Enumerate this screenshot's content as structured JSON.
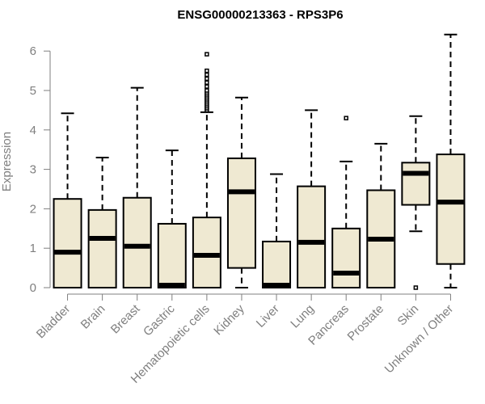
{
  "chart_data": {
    "type": "boxplot",
    "title": "ENSG00000213363 - RPS3P6",
    "ylabel": "Expression",
    "xlabel": "",
    "ylim": [
      0,
      6.5
    ],
    "yticks": [
      0,
      1,
      2,
      3,
      4,
      5,
      6
    ],
    "grid": false,
    "colors": {
      "box_fill": "#efe9d2",
      "box_stroke": "#000000",
      "axis": "#7f7f7f"
    },
    "categories": [
      "Bladder",
      "Brain",
      "Breast",
      "Gastric",
      "Hematopoietic cells",
      "Kidney",
      "Liver",
      "Lung",
      "Pancreas",
      "Prostate",
      "Skin",
      "Unknown / Other"
    ],
    "boxes": [
      {
        "min": 0,
        "q1": 0,
        "median": 0.9,
        "q3": 2.25,
        "max": 4.42,
        "outliers": []
      },
      {
        "min": 0,
        "q1": 0,
        "median": 1.25,
        "q3": 1.97,
        "max": 3.3,
        "outliers": []
      },
      {
        "min": 0,
        "q1": 0,
        "median": 1.05,
        "q3": 2.28,
        "max": 5.07,
        "outliers": []
      },
      {
        "min": 0,
        "q1": 0,
        "median": 0.02,
        "q3": 1.62,
        "max": 3.48,
        "outliers": []
      },
      {
        "min": 0,
        "q1": 0,
        "median": 0.82,
        "q3": 1.78,
        "max": 4.45,
        "outliers": [
          4.5,
          4.55,
          4.6,
          4.65,
          4.7,
          4.75,
          4.8,
          4.85,
          4.9,
          4.95,
          5.0,
          5.1,
          5.2,
          5.3,
          5.4,
          5.5,
          5.92
        ]
      },
      {
        "min": 0,
        "q1": 0.5,
        "median": 2.43,
        "q3": 3.28,
        "max": 4.82,
        "outliers": []
      },
      {
        "min": 0,
        "q1": 0,
        "median": 0.02,
        "q3": 1.17,
        "max": 2.88,
        "outliers": []
      },
      {
        "min": 0,
        "q1": 0,
        "median": 1.15,
        "q3": 2.57,
        "max": 4.5,
        "outliers": []
      },
      {
        "min": 0,
        "q1": 0,
        "median": 0.37,
        "q3": 1.5,
        "max": 3.2,
        "outliers": [
          4.3
        ]
      },
      {
        "min": 0,
        "q1": 0,
        "median": 1.23,
        "q3": 2.47,
        "max": 3.65,
        "outliers": []
      },
      {
        "min": 1.43,
        "q1": 2.1,
        "median": 2.9,
        "q3": 3.17,
        "max": 4.35,
        "outliers": [
          0
        ]
      },
      {
        "min": 0,
        "q1": 0.6,
        "median": 2.17,
        "q3": 3.38,
        "max": 6.42,
        "outliers": []
      }
    ]
  }
}
